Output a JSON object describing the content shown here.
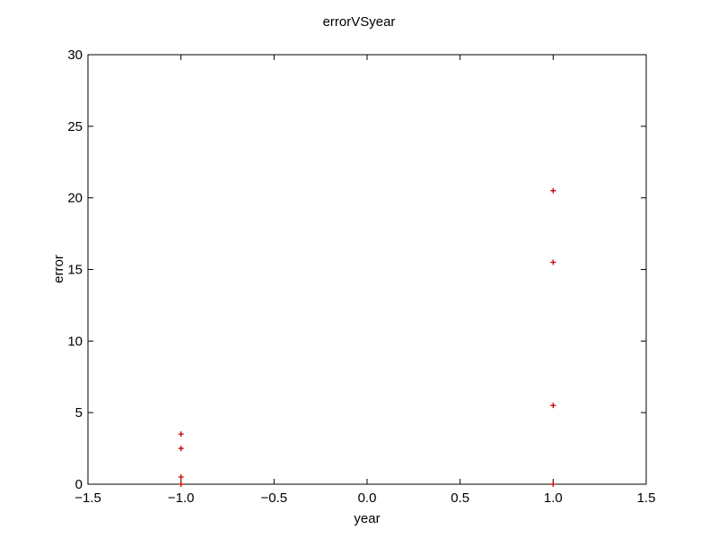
{
  "chart_data": {
    "type": "scatter",
    "title": "errorVSyear",
    "xlabel": "year",
    "ylabel": "error",
    "xlim": [
      -1.5,
      1.5
    ],
    "ylim": [
      0,
      30
    ],
    "grid": false,
    "legend": "none",
    "x_ticks": [
      -1.5,
      -1.0,
      -0.5,
      0.0,
      0.5,
      1.0,
      1.5
    ],
    "x_tick_labels": [
      "−1.5",
      "−1.0",
      "−0.5",
      "0.0",
      "0.5",
      "1.0",
      "1.5"
    ],
    "y_ticks": [
      0,
      5,
      10,
      15,
      20,
      25,
      30
    ],
    "y_tick_labels": [
      "0",
      "5",
      "10",
      "15",
      "20",
      "25",
      "30"
    ],
    "marker": "+",
    "marker_color": "#cc0000",
    "series": [
      {
        "x": [
          -1.0,
          -1.0,
          -1.0,
          -1.0,
          1.0,
          1.0,
          1.0,
          1.0
        ],
        "y": [
          3.5,
          2.5,
          0.5,
          0.0,
          20.5,
          15.5,
          5.5,
          0.0
        ]
      }
    ]
  }
}
